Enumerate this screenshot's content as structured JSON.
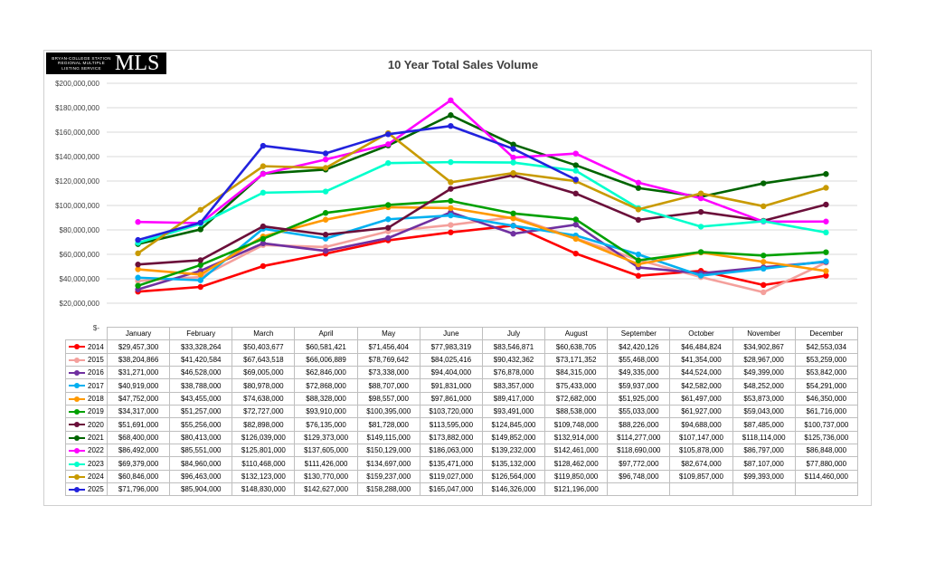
{
  "logo": {
    "small_text": "BRYAN-COLLEGE STATION REGIONAL MULTIPLE LISTING SERVICE",
    "big_text": "MLS"
  },
  "chart_data": {
    "type": "line",
    "title": "10 Year Total Sales Volume",
    "xlabel": "",
    "ylabel": "",
    "ylim": [
      0,
      200000000
    ],
    "ytick_step": 20000000,
    "ytick_labels": [
      "$-",
      "$20,000,000",
      "$40,000,000",
      "$60,000,000",
      "$80,000,000",
      "$100,000,000",
      "$120,000,000",
      "$140,000,000",
      "$160,000,000",
      "$180,000,000",
      "$200,000,000"
    ],
    "grid": true,
    "legend": "data table below chart",
    "categories": [
      "January",
      "February",
      "March",
      "April",
      "May",
      "June",
      "July",
      "August",
      "September",
      "October",
      "November",
      "December"
    ],
    "series": [
      {
        "name": "2014",
        "color": "#ff0000",
        "values": [
          29457300,
          33328264,
          50403677,
          60581421,
          71456404,
          77983319,
          83546871,
          60638705,
          42420126,
          46484824,
          34902867,
          42553034
        ]
      },
      {
        "name": "2015",
        "color": "#f4a09c",
        "values": [
          38204866,
          41420584,
          67643518,
          66006889,
          78769642,
          84025416,
          90432362,
          73171352,
          55468000,
          41354000,
          28967000,
          53259000
        ]
      },
      {
        "name": "2016",
        "color": "#7030a0",
        "values": [
          31271000,
          46528000,
          69005000,
          62846000,
          73338000,
          94404000,
          76878000,
          84315000,
          49335000,
          44524000,
          49399000,
          53842000
        ]
      },
      {
        "name": "2017",
        "color": "#00b0f0",
        "values": [
          40919000,
          38788000,
          80978000,
          72868000,
          88707000,
          91831000,
          83357000,
          75433000,
          59937000,
          42582000,
          48252000,
          54291000
        ]
      },
      {
        "name": "2018",
        "color": "#ff9900",
        "values": [
          47752000,
          43455000,
          74638000,
          88328000,
          98557000,
          97861000,
          89417000,
          72682000,
          51925000,
          61497000,
          53873000,
          46350000
        ]
      },
      {
        "name": "2019",
        "color": "#00a000",
        "values": [
          34317000,
          51257000,
          72727000,
          93910000,
          100395000,
          103720000,
          93491000,
          88538000,
          55033000,
          61927000,
          59043000,
          61716000
        ]
      },
      {
        "name": "2020",
        "color": "#6b0f3a",
        "values": [
          51691000,
          55256000,
          82898000,
          76135000,
          81728000,
          113595000,
          124845000,
          109748000,
          88226000,
          94688000,
          87485000,
          100737000
        ]
      },
      {
        "name": "2021",
        "color": "#006400",
        "values": [
          68400000,
          80413000,
          126039000,
          129373000,
          149115000,
          173882000,
          149852000,
          132914000,
          114277000,
          107147000,
          118114000,
          125736000
        ]
      },
      {
        "name": "2022",
        "color": "#ff00ff",
        "values": [
          86492000,
          85551000,
          125801000,
          137605000,
          150129000,
          186063000,
          139232000,
          142461000,
          118690000,
          105878000,
          86797000,
          86848000
        ]
      },
      {
        "name": "2023",
        "color": "#00ffcc",
        "values": [
          69379000,
          84960000,
          110468000,
          111426000,
          134697000,
          135471000,
          135132000,
          128462000,
          97772000,
          82674000,
          87107000,
          77880000
        ]
      },
      {
        "name": "2024",
        "color": "#c89a00",
        "values": [
          60846000,
          96463000,
          132123000,
          130770000,
          159237000,
          119027000,
          126564000,
          119850000,
          96748000,
          109857000,
          99393000,
          114460000
        ]
      },
      {
        "name": "2025",
        "color": "#2222dd",
        "values": [
          71796000,
          85904000,
          148830000,
          142627000,
          158288000,
          165047000,
          146326000,
          121196000,
          null,
          null,
          null,
          null
        ]
      }
    ],
    "table_values": [
      [
        "$29,457,300",
        "$33,328,264",
        "$50,403,677",
        "$60,581,421",
        "$71,456,404",
        "$77,983,319",
        "$83,546,871",
        "$60,638,705",
        "$42,420,126",
        "$46,484,824",
        "$34,902,867",
        "$42,553,034"
      ],
      [
        "$38,204,866",
        "$41,420,584",
        "$67,643,518",
        "$66,006,889",
        "$78,769,642",
        "$84,025,416",
        "$90,432,362",
        "$73,171,352",
        "$55,468,000",
        "$41,354,000",
        "$28,967,000",
        "$53,259,000"
      ],
      [
        "$31,271,000",
        "$46,528,000",
        "$69,005,000",
        "$62,846,000",
        "$73,338,000",
        "$94,404,000",
        "$76,878,000",
        "$84,315,000",
        "$49,335,000",
        "$44,524,000",
        "$49,399,000",
        "$53,842,000"
      ],
      [
        "$40,919,000",
        "$38,788,000",
        "$80,978,000",
        "$72,868,000",
        "$88,707,000",
        "$91,831,000",
        "$83,357,000",
        "$75,433,000",
        "$59,937,000",
        "$42,582,000",
        "$48,252,000",
        "$54,291,000"
      ],
      [
        "$47,752,000",
        "$43,455,000",
        "$74,638,000",
        "$88,328,000",
        "$98,557,000",
        "$97,861,000",
        "$89,417,000",
        "$72,682,000",
        "$51,925,000",
        "$61,497,000",
        "$53,873,000",
        "$46,350,000"
      ],
      [
        "$34,317,000",
        "$51,257,000",
        "$72,727,000",
        "$93,910,000",
        "$100,395,000",
        "$103,720,000",
        "$93,491,000",
        "$88,538,000",
        "$55,033,000",
        "$61,927,000",
        "$59,043,000",
        "$61,716,000"
      ],
      [
        "$51,691,000",
        "$55,256,000",
        "$82,898,000",
        "$76,135,000",
        "$81,728,000",
        "$113,595,000",
        "$124,845,000",
        "$109,748,000",
        "$88,226,000",
        "$94,688,000",
        "$87,485,000",
        "$100,737,000"
      ],
      [
        "$68,400,000",
        "$80,413,000",
        "$126,039,000",
        "$129,373,000",
        "$149,115,000",
        "$173,882,000",
        "$149,852,000",
        "$132,914,000",
        "$114,277,000",
        "$107,147,000",
        "$118,114,000",
        "$125,736,000"
      ],
      [
        "$86,492,000",
        "$85,551,000",
        "$125,801,000",
        "$137,605,000",
        "$150,129,000",
        "$186,063,000",
        "$139,232,000",
        "$142,461,000",
        "$118,690,000",
        "$105,878,000",
        "$86,797,000",
        "$86,848,000"
      ],
      [
        "$69,379,000",
        "$84,960,000",
        "$110,468,000",
        "$111,426,000",
        "$134,697,000",
        "$135,471,000",
        "$135,132,000",
        "$128,462,000",
        "$97,772,000",
        "$82,674,000",
        "$87,107,000",
        "$77,880,000"
      ],
      [
        "$60,846,000",
        "$96,463,000",
        "$132,123,000",
        "$130,770,000",
        "$159,237,000",
        "$119,027,000",
        "$126,564,000",
        "$119,850,000",
        "$96,748,000",
        "$109,857,000",
        "$99,393,000",
        "$114,460,000"
      ],
      [
        "$71,796,000",
        "$85,904,000",
        "$148,830,000",
        "$142,627,000",
        "$158,288,000",
        "$165,047,000",
        "$146,326,000",
        "$121,196,000",
        "",
        "",
        "",
        ""
      ]
    ]
  }
}
